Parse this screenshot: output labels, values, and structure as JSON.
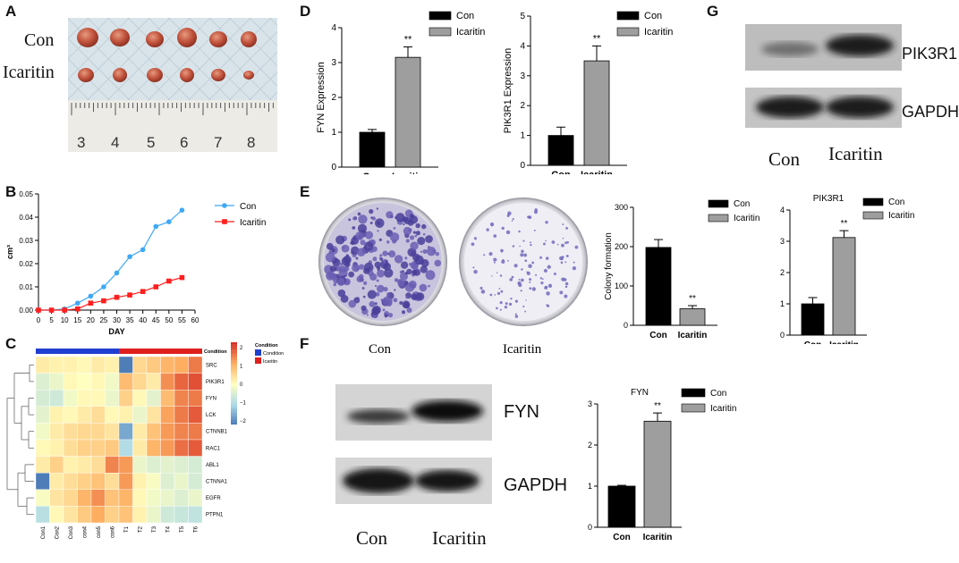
{
  "panels": {
    "A": {
      "letter": "A",
      "con": "Con",
      "icaritin": "Icaritin",
      "ruler": [
        "3",
        "4",
        "5",
        "6",
        "7",
        "8"
      ]
    },
    "B": {
      "letter": "B"
    },
    "C": {
      "letter": "C"
    },
    "D": {
      "letter": "D"
    },
    "E": {
      "letter": "E",
      "dish_con": "Con",
      "dish_ica": "Icaritin"
    },
    "F": {
      "letter": "F",
      "blot_fyn": "FYN",
      "blot_gapdh": "GAPDH",
      "con": "Con",
      "icaritin": "Icaritin"
    },
    "G": {
      "letter": "G",
      "blot_pik": "PIK3R1",
      "blot_gapdh": "GAPDH",
      "con": "Con",
      "icaritin": "Icaritin"
    }
  },
  "colors": {
    "con_line": "#3fa9f5",
    "icaritin_line": "#ff1f1f",
    "bar_con": "#000000",
    "bar_ica": "#9e9e9e",
    "heat_blue": "#2c7bb6",
    "heat_red": "#d7191c"
  },
  "chart_data": [
    {
      "id": "B",
      "type": "line",
      "xlabel": "DAY",
      "ylabel": "cm³",
      "xlim": [
        0,
        60
      ],
      "ylim": [
        0,
        0.05
      ],
      "xticks": [
        "0",
        "5",
        "10",
        "15",
        "20",
        "25",
        "30",
        "35",
        "40",
        "45",
        "50",
        "55",
        "60"
      ],
      "yticks": [
        "0.00",
        "0.01",
        "0.02",
        "0.03",
        "0.04",
        "0.05"
      ],
      "x": [
        0,
        5,
        10,
        15,
        20,
        25,
        30,
        35,
        40,
        45,
        50,
        55
      ],
      "series": [
        {
          "name": "Con",
          "values": [
            0,
            0,
            0.0005,
            0.003,
            0.006,
            0.01,
            0.016,
            0.023,
            0.026,
            0.036,
            0.038,
            0.043
          ]
        },
        {
          "name": "Icaritin",
          "values": [
            0,
            0,
            0,
            0.0005,
            0.003,
            0.004,
            0.0055,
            0.0065,
            0.008,
            0.01,
            0.0125,
            0.014
          ]
        }
      ]
    },
    {
      "id": "C",
      "type": "heatmap",
      "rows": [
        "SRC",
        "PIK3R1",
        "FYN",
        "LCK",
        "CTNNB1",
        "RAC1",
        "ABL1",
        "CTNNA1",
        "EGFR",
        "PTPN1"
      ],
      "columns": [
        "Con1",
        "Con2",
        "Con3",
        "con4",
        "con5",
        "con6",
        "T1",
        "T2",
        "T3",
        "T4",
        "T5",
        "T6"
      ],
      "annotation_title": "Condition",
      "legend_title": "Condition",
      "legend_items": [
        "Condition",
        "Icaritin"
      ],
      "scale_ticks": [
        "2",
        "1",
        "0",
        "−1",
        "−2"
      ],
      "values": [
        [
          0.3,
          0.2,
          0.2,
          0.1,
          0.3,
          0.2,
          -2.3,
          0.6,
          0.8,
          1.1,
          1.2,
          1.7
        ],
        [
          -0.5,
          -0.3,
          0.1,
          0.0,
          0.1,
          -0.2,
          1.0,
          0.6,
          0.3,
          1.5,
          1.9,
          2.1
        ],
        [
          -0.6,
          -0.7,
          -0.2,
          0.1,
          0.1,
          -0.3,
          0.7,
          0.1,
          -0.4,
          1.0,
          1.6,
          1.7
        ],
        [
          -0.4,
          0.2,
          0.1,
          0.3,
          0.5,
          0.1,
          0.2,
          -0.3,
          0.4,
          1.3,
          1.7,
          2.0
        ],
        [
          -0.2,
          0.3,
          0.5,
          0.6,
          0.6,
          0.4,
          -1.8,
          0.3,
          0.9,
          1.4,
          1.6,
          1.7
        ],
        [
          0.1,
          0.2,
          0.5,
          0.7,
          0.7,
          0.8,
          -1.1,
          0.3,
          1.1,
          1.4,
          1.8,
          2.0
        ],
        [
          0.3,
          0.7,
          0.2,
          0.3,
          0.5,
          1.6,
          1.4,
          -0.3,
          -0.5,
          -0.4,
          -0.5,
          -0.6
        ],
        [
          -2.3,
          0.3,
          0.5,
          0.7,
          0.9,
          0.5,
          1.4,
          0.2,
          -0.1,
          -0.5,
          -0.3,
          -0.6
        ],
        [
          -0.1,
          0.4,
          0.6,
          1.1,
          1.5,
          0.9,
          1.1,
          0.1,
          -0.2,
          -0.3,
          -0.5,
          -0.3
        ],
        [
          -1.0,
          0.1,
          0.4,
          0.8,
          1.2,
          0.7,
          0.9,
          0.2,
          -0.3,
          -0.7,
          -0.8,
          -0.9
        ]
      ]
    },
    {
      "id": "D1",
      "type": "bar",
      "title": "",
      "ylabel": "FYN Expression",
      "categories": [
        "Con",
        "Icaritin"
      ],
      "values": [
        1.0,
        3.15
      ],
      "errors": [
        0.08,
        0.3
      ],
      "ylim": [
        0,
        4
      ],
      "yticks": [
        "0",
        "1",
        "2",
        "3",
        "4"
      ],
      "significance": "**",
      "legend": [
        "Con",
        "Icaritin"
      ]
    },
    {
      "id": "D2",
      "type": "bar",
      "title": "",
      "ylabel": "PIK3R1 Expression",
      "categories": [
        "Con",
        "Icaritin"
      ],
      "values": [
        1.0,
        3.5
      ],
      "errors": [
        0.28,
        0.5
      ],
      "ylim": [
        0,
        5
      ],
      "yticks": [
        "0",
        "1",
        "2",
        "3",
        "4",
        "5"
      ],
      "significance": "**",
      "legend": [
        "Con",
        "Icaritin"
      ]
    },
    {
      "id": "E",
      "type": "bar",
      "title": "",
      "ylabel": "Colony formation",
      "categories": [
        "Con",
        "Icaritin"
      ],
      "values": [
        198,
        42
      ],
      "errors": [
        20,
        8
      ],
      "ylim": [
        0,
        300
      ],
      "yticks": [
        "0",
        "100",
        "200",
        "300"
      ],
      "significance": "**",
      "legend": [
        "Con",
        "Icaritin"
      ]
    },
    {
      "id": "G",
      "type": "bar",
      "title": "PIK3R1",
      "ylabel": "",
      "categories": [
        "Con",
        "Icaritin"
      ],
      "values": [
        1.0,
        3.12
      ],
      "errors": [
        0.2,
        0.22
      ],
      "ylim": [
        0,
        4
      ],
      "yticks": [
        "0",
        "1",
        "2",
        "3",
        "4"
      ],
      "significance": "**",
      "legend": [
        "Con",
        "Icaritin"
      ]
    },
    {
      "id": "F",
      "type": "bar",
      "title": "FYN",
      "ylabel": "",
      "categories": [
        "Con",
        "Icaritin"
      ],
      "values": [
        1.0,
        2.58
      ],
      "errors": [
        0.02,
        0.2
      ],
      "ylim": [
        0,
        3
      ],
      "yticks": [
        "0",
        "1",
        "2",
        "3"
      ],
      "significance": "**",
      "legend": [
        "Con",
        "Icaritin"
      ]
    }
  ]
}
